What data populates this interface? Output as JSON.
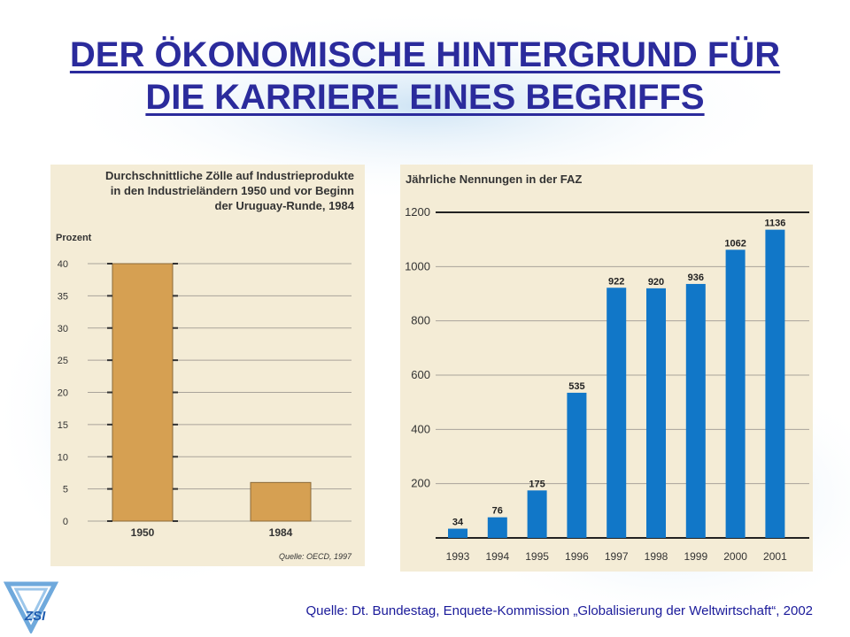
{
  "slide": {
    "title_line1": "DER ÖKONOMISCHE HINTERGRUND FÜR",
    "title_line2": "DIE KARRIERE EINES BEGRIFFS",
    "footer": "Quelle: Dt. Bundestag, Enquete-Kommission „Globalisierung der Weltwirtschaft“, 2002",
    "logo_text": "ZSI",
    "accent_color": "#2b2b9c"
  },
  "chart_data": [
    {
      "type": "bar",
      "title_lines": [
        "Durchschnittliche Zölle auf Industrieprodukte",
        "in den Industrieländern 1950 und vor Beginn",
        "der Uruguay-Runde, 1984"
      ],
      "ylabel": "Prozent",
      "categories": [
        "1950",
        "1984"
      ],
      "values": [
        40,
        6
      ],
      "ylim": [
        0,
        40
      ],
      "yticks": [
        0,
        5,
        10,
        15,
        20,
        25,
        30,
        35,
        40
      ],
      "source": "Quelle: OECD, 1997",
      "bar_color": "#d6a052",
      "grid": true
    },
    {
      "type": "bar",
      "title": "Jährliche Nennungen in der FAZ",
      "categories": [
        "1993",
        "1994",
        "1995",
        "1996",
        "1997",
        "1998",
        "1999",
        "2000",
        "2001"
      ],
      "values": [
        34,
        76,
        175,
        535,
        922,
        920,
        936,
        1062,
        1136
      ],
      "value_labels": [
        "34",
        "76",
        "175",
        "535",
        "922",
        "920",
        "936",
        "1062",
        "1136"
      ],
      "ylim": [
        0,
        1200
      ],
      "yticks": [
        200,
        400,
        600,
        800,
        1000,
        1200
      ],
      "bar_color": "#1177c8",
      "grid": true
    }
  ]
}
